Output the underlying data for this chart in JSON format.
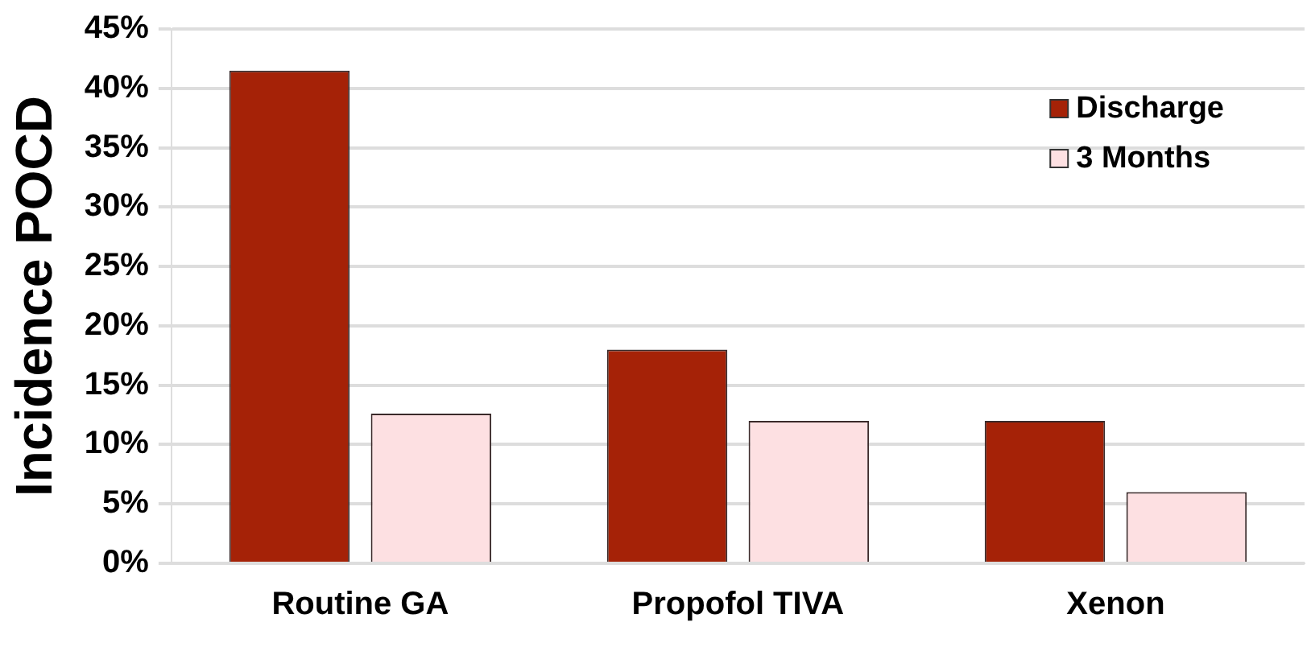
{
  "chart_data": {
    "type": "bar",
    "ylabel": "Incidence POCD",
    "categories": [
      "Routine GA",
      "Propofol TIVA",
      "Xenon"
    ],
    "series": [
      {
        "name": "Discharge",
        "color": "#a52207",
        "values": [
          41.5,
          18,
          12
        ]
      },
      {
        "name": "3 Months",
        "color": "#fde0e2",
        "values": [
          12.6,
          12,
          6
        ]
      }
    ],
    "ylim": [
      0,
      45
    ],
    "yticks": [
      {
        "value": 0,
        "label": "0%"
      },
      {
        "value": 5,
        "label": "5%"
      },
      {
        "value": 10,
        "label": "10%"
      },
      {
        "value": 15,
        "label": "15%"
      },
      {
        "value": 20,
        "label": "20%"
      },
      {
        "value": 25,
        "label": "25%"
      },
      {
        "value": 30,
        "label": "30%"
      },
      {
        "value": 35,
        "label": "35%"
      },
      {
        "value": 40,
        "label": "40%"
      },
      {
        "value": 45,
        "label": "45%"
      }
    ],
    "grid": "y",
    "legend": "top right"
  }
}
